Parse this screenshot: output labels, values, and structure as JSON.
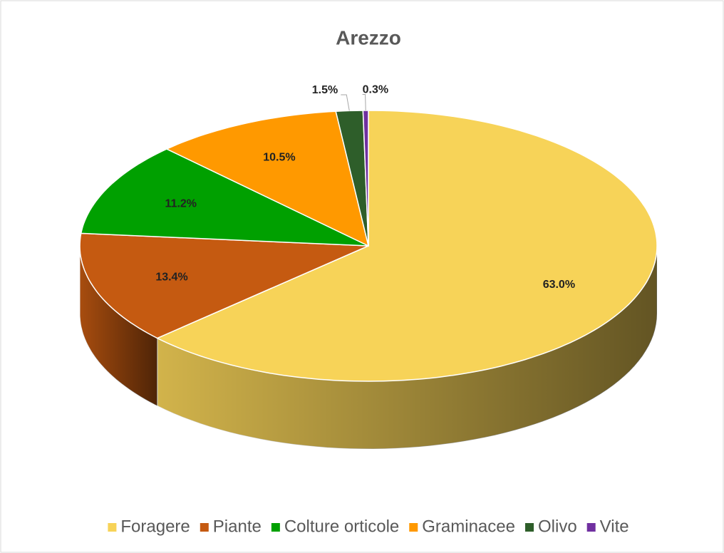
{
  "chart_data": {
    "type": "pie",
    "title": "Arezzo",
    "categories": [
      "Foragere",
      "Piante",
      "Colture orticole",
      "Graminacee",
      "Olivo",
      "Vite"
    ],
    "values": [
      63.0,
      13.4,
      11.2,
      10.5,
      1.5,
      0.3
    ],
    "value_labels": [
      "63.0%",
      "13.4%",
      "11.2%",
      "10.5%",
      "1.5%",
      "0.3%"
    ],
    "colors": [
      "#f7d358",
      "#c55a11",
      "#00a000",
      "#ff9900",
      "#2e5e2a",
      "#7030a0"
    ],
    "legend": "bottom"
  }
}
